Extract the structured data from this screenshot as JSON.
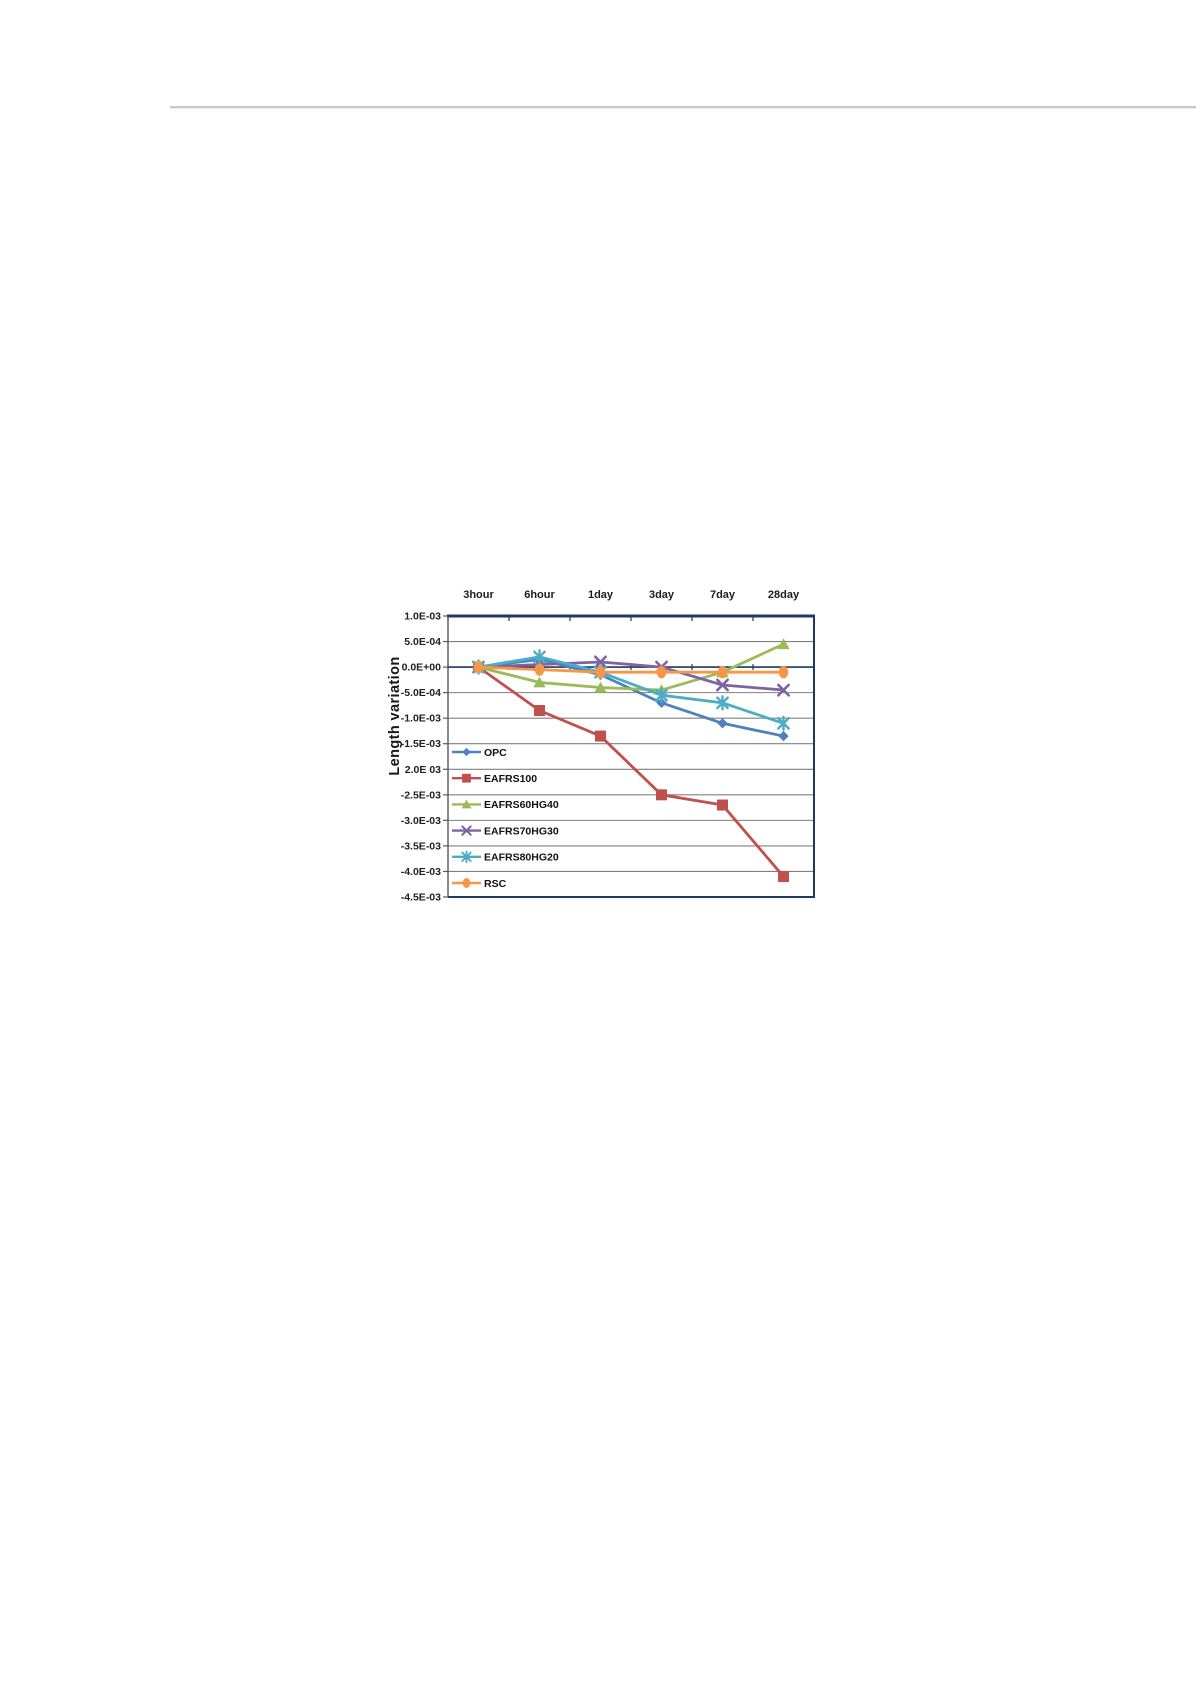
{
  "page": {
    "background": "#ffffff"
  },
  "header_rule": {
    "color": "#c7c7c7"
  },
  "chart_data": {
    "type": "line",
    "title": "",
    "xlabel": "",
    "ylabel": "Length variation",
    "categories": [
      "3hour",
      "6hour",
      "1day",
      "3day",
      "7day",
      "28day"
    ],
    "y_tick_labels": [
      "1.0E-03",
      "5.0E-04",
      "0.0E+00",
      "-5.0E-04",
      "-1.0E-03",
      "-1.5E-03",
      "2.0E 03",
      "-2.5E-03",
      "-3.0E-03",
      "-3.5E-03",
      "-4.0E-03",
      "-4.5E-03"
    ],
    "ylim": [
      -0.0045,
      0.001
    ],
    "grid": true,
    "legend_position": "inside-left",
    "axis_color": "#1F3864",
    "grid_color": "#808080",
    "value_axis_color": "#595959",
    "text_color": "#1f1f1f",
    "series": [
      {
        "name": "OPC",
        "color": "#4F81BD",
        "marker": "diamond",
        "values": [
          0,
          0.00015,
          -0.00015,
          -0.0007,
          -0.0011,
          -0.00135
        ]
      },
      {
        "name": "EAFRS100",
        "color": "#C0504D",
        "marker": "square",
        "values": [
          0,
          -0.00085,
          -0.00135,
          -0.0025,
          -0.0027,
          -0.0041
        ]
      },
      {
        "name": "EAFRS60HG40",
        "color": "#9BBB59",
        "marker": "triangle",
        "values": [
          0,
          -0.0003,
          -0.0004,
          -0.00045,
          -0.0001,
          0.00045
        ]
      },
      {
        "name": "EAFRS70HG30",
        "color": "#8064A2",
        "marker": "x",
        "values": [
          0,
          5e-05,
          0.0001,
          0.0,
          -0.00035,
          -0.00045
        ]
      },
      {
        "name": "EAFRS80HG20",
        "color": "#4BACC6",
        "marker": "star",
        "values": [
          0,
          0.0002,
          -0.0001,
          -0.00055,
          -0.0007,
          -0.0011
        ]
      },
      {
        "name": "RSC",
        "color": "#F79646",
        "marker": "circle",
        "values": [
          0,
          -5e-05,
          -0.0001,
          -0.0001,
          -0.0001,
          -0.0001
        ]
      }
    ]
  }
}
